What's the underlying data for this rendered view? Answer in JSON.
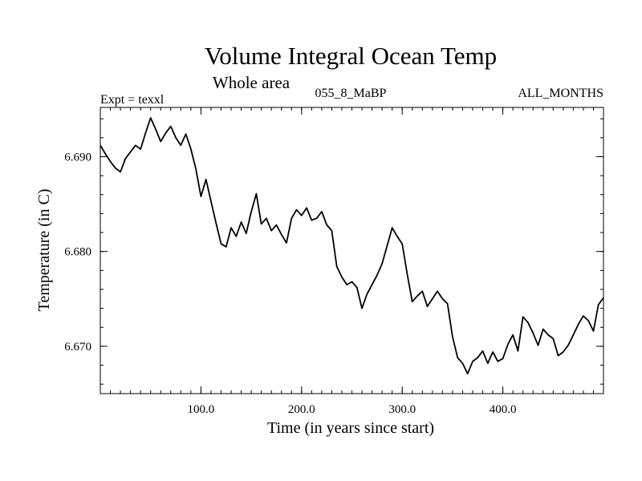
{
  "chart_data": {
    "type": "line",
    "title": "Volume Integral Ocean Temp",
    "subtitle": "Whole area",
    "header_left": "Expt = texxl",
    "header_center": "055_8_MaBP",
    "header_right": "ALL_MONTHS",
    "xlabel": "Time (in years since start)",
    "ylabel": "Temperature (in C)",
    "xlim": [
      0,
      500
    ],
    "ylim": [
      6.665,
      6.6952
    ],
    "x_major_ticks": [
      100,
      200,
      300,
      400
    ],
    "x_tick_labels": [
      "100.0",
      "200.0",
      "300.0",
      "400.0"
    ],
    "x_minor_step": 10,
    "y_major_ticks": [
      6.67,
      6.68,
      6.69
    ],
    "y_tick_labels": [
      "6.670",
      "6.680",
      "6.690"
    ],
    "y_minor_step": 0.002,
    "grid": false,
    "series": [
      {
        "name": "Volume Integral Ocean Temp",
        "color": "#000000",
        "x": [
          0,
          5,
          10,
          15,
          20,
          25,
          30,
          35,
          40,
          45,
          50,
          55,
          60,
          65,
          70,
          75,
          80,
          85,
          90,
          95,
          100,
          105,
          110,
          115,
          120,
          125,
          130,
          135,
          140,
          145,
          150,
          155,
          160,
          165,
          170,
          175,
          180,
          185,
          190,
          195,
          200,
          205,
          210,
          215,
          220,
          225,
          230,
          235,
          240,
          245,
          250,
          255,
          260,
          265,
          270,
          275,
          280,
          285,
          290,
          295,
          300,
          305,
          310,
          315,
          320,
          325,
          330,
          335,
          340,
          345,
          350,
          355,
          360,
          365,
          370,
          375,
          380,
          385,
          390,
          395,
          400,
          405,
          410,
          415,
          420,
          425,
          430,
          435,
          440,
          445,
          450,
          455,
          460,
          465,
          470,
          475,
          480,
          485,
          490,
          495,
          500
        ],
        "values": [
          6.6912,
          6.6903,
          6.6895,
          6.6888,
          6.6884,
          6.6898,
          6.6905,
          6.6912,
          6.6908,
          6.6925,
          6.6941,
          6.6929,
          6.6916,
          6.6925,
          6.6932,
          6.692,
          6.6912,
          6.6924,
          6.6908,
          6.6887,
          6.6858,
          6.6876,
          6.6853,
          6.683,
          6.6808,
          6.6805,
          6.6825,
          6.6816,
          6.6831,
          6.6819,
          6.6842,
          6.6861,
          6.6829,
          6.6835,
          6.6822,
          6.6828,
          6.6818,
          6.6809,
          6.6835,
          6.6844,
          6.6838,
          6.6846,
          6.6833,
          6.6835,
          6.6842,
          6.6828,
          6.6822,
          6.6784,
          6.6773,
          6.6765,
          6.6768,
          6.6762,
          6.674,
          6.6755,
          6.6765,
          6.6775,
          6.6787,
          6.6806,
          6.6825,
          6.6816,
          6.6808,
          6.6776,
          6.6747,
          6.6753,
          6.6758,
          6.6742,
          6.675,
          6.6758,
          6.675,
          6.6745,
          6.671,
          6.6688,
          6.6682,
          6.6671,
          6.6684,
          6.6688,
          6.6695,
          6.6682,
          6.6694,
          6.6684,
          6.6687,
          6.6702,
          6.6712,
          6.6695,
          6.6731,
          6.6725,
          6.6714,
          6.6701,
          6.6718,
          6.6712,
          6.6708,
          6.669,
          6.6694,
          6.6701,
          6.6712,
          6.6723,
          6.6732,
          6.6727,
          6.6716,
          6.6744,
          6.6751
        ]
      }
    ]
  }
}
